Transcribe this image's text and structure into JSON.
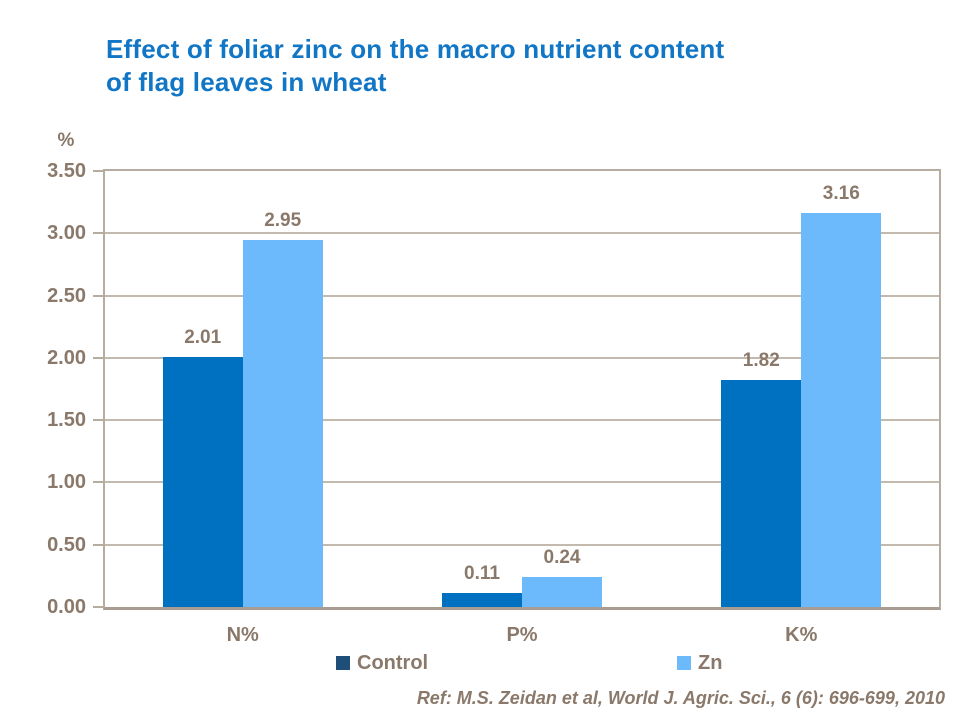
{
  "title": {
    "line1": "Effect of foliar zinc on the macro nutrient content",
    "line2": "of flag leaves in wheat",
    "color": "#1176C5"
  },
  "chart_data": {
    "type": "bar",
    "title": "Effect of foliar zinc on the macro nutrient content of flag leaves in wheat",
    "xlabel": "",
    "ylabel": "%",
    "categories": [
      "N%",
      "P%",
      "K%"
    ],
    "series": [
      {
        "name": "Control",
        "color": "#0070C0",
        "legend_color": "#1F4E79",
        "values": [
          2.01,
          0.11,
          1.82
        ],
        "value_labels": [
          "2.01",
          "0.11",
          "1.82"
        ]
      },
      {
        "name": "Zn",
        "color": "#6CB9FC",
        "legend_color": "#6CB9FC",
        "values": [
          2.95,
          0.24,
          3.16
        ],
        "value_labels": [
          "2.95",
          "0.24",
          "3.16"
        ]
      }
    ],
    "y_axis": {
      "min": 0,
      "max": 3.5,
      "step": 0.5,
      "tick_labels": [
        "0.00",
        "0.50",
        "1.00",
        "1.50",
        "2.00",
        "2.50",
        "3.00",
        "3.50"
      ]
    },
    "grid": true,
    "legend_position": "bottom",
    "text_color": "#8A796A",
    "grid_color": "#C4B9AD",
    "axis_color": "#B7ACA0"
  },
  "footer": {
    "reference": "Ref: M.S. Zeidan et al, World J. Agric. Sci., 6 (6): 696-699, 2010"
  }
}
